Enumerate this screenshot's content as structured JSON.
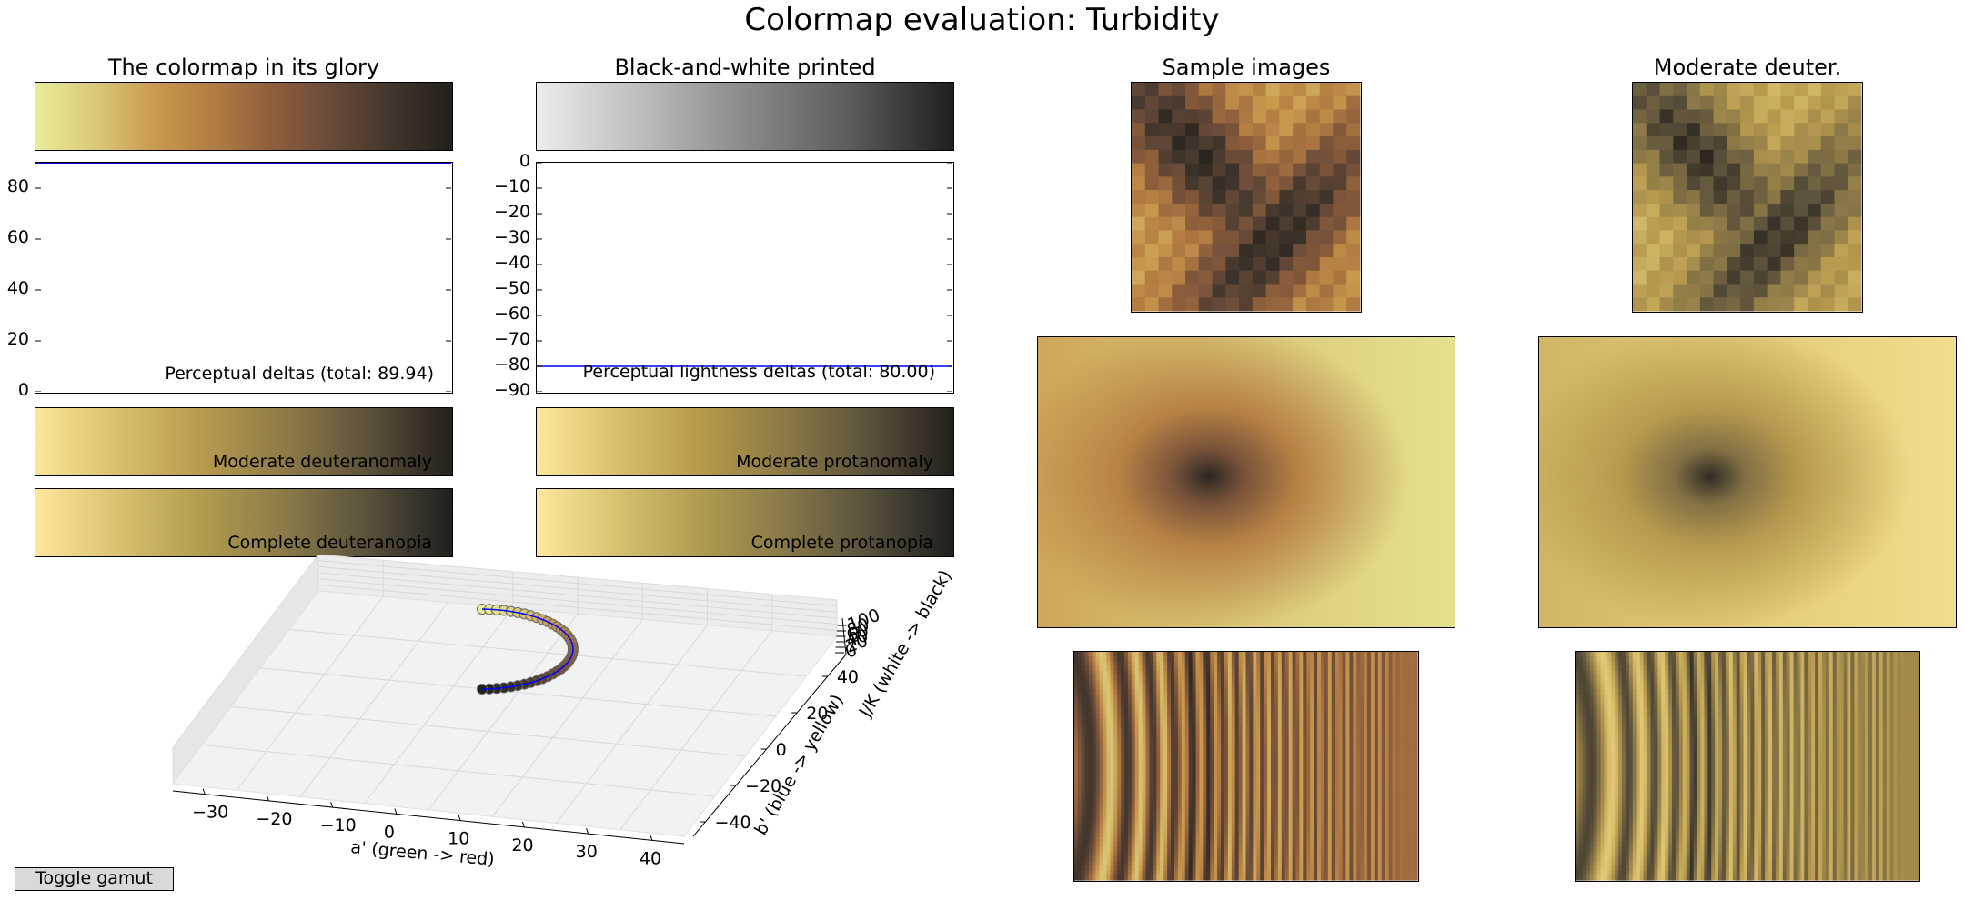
{
  "figure": {
    "title": "Colormap evaluation: Turbidity",
    "panel_titles": {
      "glory": "The colormap in its glory",
      "bw": "Black-and-white printed",
      "samples": "Sample images",
      "deuter": "Moderate deuter."
    },
    "toggle_button": "Toggle gamut"
  },
  "colors": {
    "colormap": [
      "#e8ee98",
      "#dbc87a",
      "#c99a4e",
      "#b27c42",
      "#8d5e3c",
      "#684a38",
      "#40352b",
      "#22201b"
    ],
    "bw": [
      "#ececec",
      "#bdbdbd",
      "#8a8a8a",
      "#5c5c5c",
      "#1f1f1f"
    ],
    "deuteranomaly": [
      "#fbe698",
      "#d8bf6d",
      "#b89a4e",
      "#8e7a48",
      "#5c523b",
      "#23201b"
    ],
    "protanomaly": [
      "#fde799",
      "#d6bd6c",
      "#b59949",
      "#8a7946",
      "#5a513b",
      "#22201b"
    ],
    "deuteranopia": [
      "#ffe79c",
      "#d9c071",
      "#b19b4e",
      "#8a7a48",
      "#58513c",
      "#1f1f1d"
    ],
    "protanopia": [
      "#ffe79c",
      "#d6c070",
      "#ae9a4f",
      "#877849",
      "#56503c",
      "#1f1f1d"
    ],
    "line": "#0000ff",
    "marker_edge": "#666666"
  },
  "chart_data": [
    {
      "type": "line",
      "name": "perceptual-deltas",
      "annotation": "Perceptual deltas (total: 89.94)",
      "ylim": [
        0,
        90
      ],
      "yticks": [
        "0",
        "20",
        "40",
        "60",
        "80"
      ],
      "x": [
        0,
        1
      ],
      "y": [
        89.94,
        89.94
      ]
    },
    {
      "type": "line",
      "name": "perceptual-lightness-deltas",
      "annotation": "Perceptual lightness deltas (total: 80.00)",
      "ylim": [
        -90,
        0
      ],
      "yticks": [
        "0",
        "−10",
        "−20",
        "−30",
        "−40",
        "−50",
        "−60",
        "−70",
        "−80",
        "−90"
      ],
      "x": [
        0,
        1
      ],
      "y": [
        -80.0,
        -80.0
      ]
    },
    {
      "type": "scatter",
      "name": "colormap-3d-path",
      "xlabel": "a' (green -> red)",
      "ylabel": "b' (blue -> yellow)",
      "zlabel": "J/K (white -> black)",
      "xticks": [
        "−30",
        "−20",
        "−10",
        "0",
        "10",
        "20",
        "30",
        "40"
      ],
      "yticks": [
        "−40",
        "−20",
        "0",
        "20",
        "40"
      ],
      "zticks": [
        "0",
        "20",
        "40",
        "60",
        "80",
        "100"
      ],
      "point_count": 40,
      "endpoints": {
        "start_a": 2,
        "start_b": 45,
        "end_a": 2,
        "end_b": -5
      }
    }
  ],
  "colormap_bars": {
    "deuteranomaly_label": "Moderate deuteranomaly",
    "protanomaly_label": "Moderate protanomaly",
    "deuteranopia_label": "Complete deuteranopia",
    "protanopia_label": "Complete protanopia"
  }
}
